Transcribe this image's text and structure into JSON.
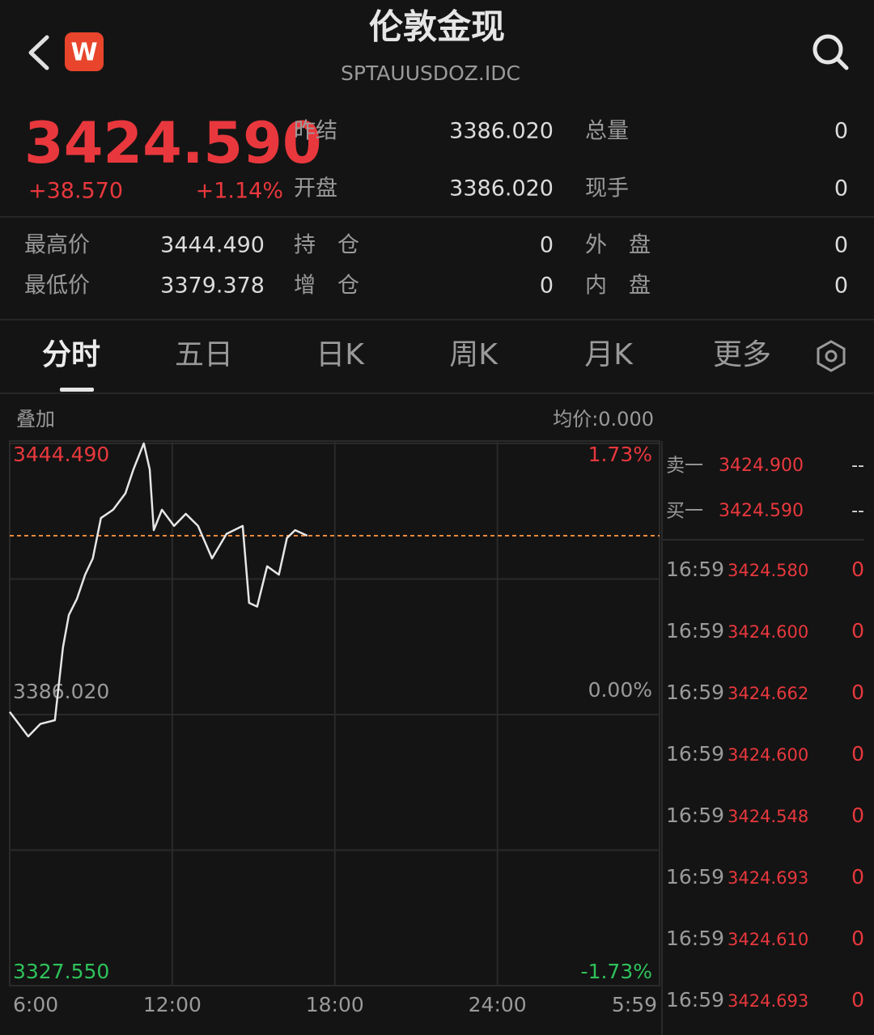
{
  "header": {
    "title": "伦敦金现",
    "subtitle": "SPTAUUSDOZ.IDC",
    "logo": "W"
  },
  "quote": {
    "price": "3424.590",
    "change": "+38.570",
    "change_pct": "+1.14%",
    "stats": [
      {
        "label": "昨结",
        "value": "3386.020"
      },
      {
        "label": "总量",
        "value": "0"
      },
      {
        "label": "开盘",
        "value": "3386.020"
      },
      {
        "label": "现手",
        "value": "0"
      }
    ],
    "details": [
      {
        "label": "最高价",
        "value": "3444.490"
      },
      {
        "label": "持　仓",
        "value": "0"
      },
      {
        "label": "外　盘",
        "value": "0"
      },
      {
        "label": "最低价",
        "value": "3379.378"
      },
      {
        "label": "增　仓",
        "value": "0"
      },
      {
        "label": "内　盘",
        "value": "0"
      }
    ]
  },
  "tabs": [
    "分时",
    "五日",
    "日K",
    "周K",
    "月K",
    "更多"
  ],
  "chart_header": {
    "overlay": "叠加",
    "average": "均价:0.000"
  },
  "chart_data": {
    "type": "line",
    "x": [
      "6:00",
      "6:41",
      "7:08",
      "7:40",
      "7:58",
      "8:11",
      "8:29",
      "8:47",
      "9:04",
      "9:22",
      "9:49",
      "10:16",
      "10:34",
      "10:57",
      "11:10",
      "11:19",
      "11:37",
      "12:04",
      "12:30",
      "12:57",
      "13:28",
      "14:00",
      "14:36",
      "14:50",
      "15:08",
      "15:30",
      "15:56",
      "16:14",
      "16:32",
      "16:59"
    ],
    "values": [
      3386.6,
      3381.3,
      3384.0,
      3384.8,
      3400.5,
      3407.5,
      3411.0,
      3416.2,
      3419.7,
      3428.4,
      3430.2,
      3433.7,
      3438.9,
      3444.5,
      3438.9,
      3425.8,
      3430.2,
      3426.7,
      3429.3,
      3426.7,
      3419.7,
      3425.0,
      3426.7,
      3410.1,
      3409.3,
      3418.0,
      3416.2,
      3424.1,
      3425.8,
      3424.6
    ],
    "color": "#e6e6e6",
    "price_line": 3424.59,
    "price_line_color": "#f08a3c",
    "ylim": [
      3327.55,
      3444.49
    ],
    "yticks": [
      {
        "value": 3444.49,
        "label": "3444.490"
      },
      {
        "value": 3386.02,
        "label": "3386.020"
      },
      {
        "value": 3327.55,
        "label": "3327.550"
      }
    ],
    "y2lim": [
      -1.73,
      1.73
    ],
    "y2ticks": [
      {
        "value": 1.73,
        "label": "1.73%"
      },
      {
        "value": 0,
        "label": "0.00%"
      },
      {
        "value": -1.73,
        "label": "-1.73%"
      }
    ],
    "xticks": [
      "6:00",
      "12:00",
      "18:00",
      "24:00",
      "5:59"
    ],
    "grid": true
  },
  "order_book": [
    {
      "label": "卖一",
      "price": "3424.900",
      "volume": "--"
    },
    {
      "label": "买一",
      "price": "3424.590",
      "volume": "--"
    }
  ],
  "trades": [
    {
      "time": "16:59",
      "price": "3424.580",
      "volume": "0"
    },
    {
      "time": "16:59",
      "price": "3424.600",
      "volume": "0"
    },
    {
      "time": "16:59",
      "price": "3424.662",
      "volume": "0"
    },
    {
      "time": "16:59",
      "price": "3424.600",
      "volume": "0"
    },
    {
      "time": "16:59",
      "price": "3424.548",
      "volume": "0"
    },
    {
      "time": "16:59",
      "price": "3424.693",
      "volume": "0"
    },
    {
      "time": "16:59",
      "price": "3424.610",
      "volume": "0"
    },
    {
      "time": "16:59",
      "price": "3424.693",
      "volume": "0"
    }
  ]
}
